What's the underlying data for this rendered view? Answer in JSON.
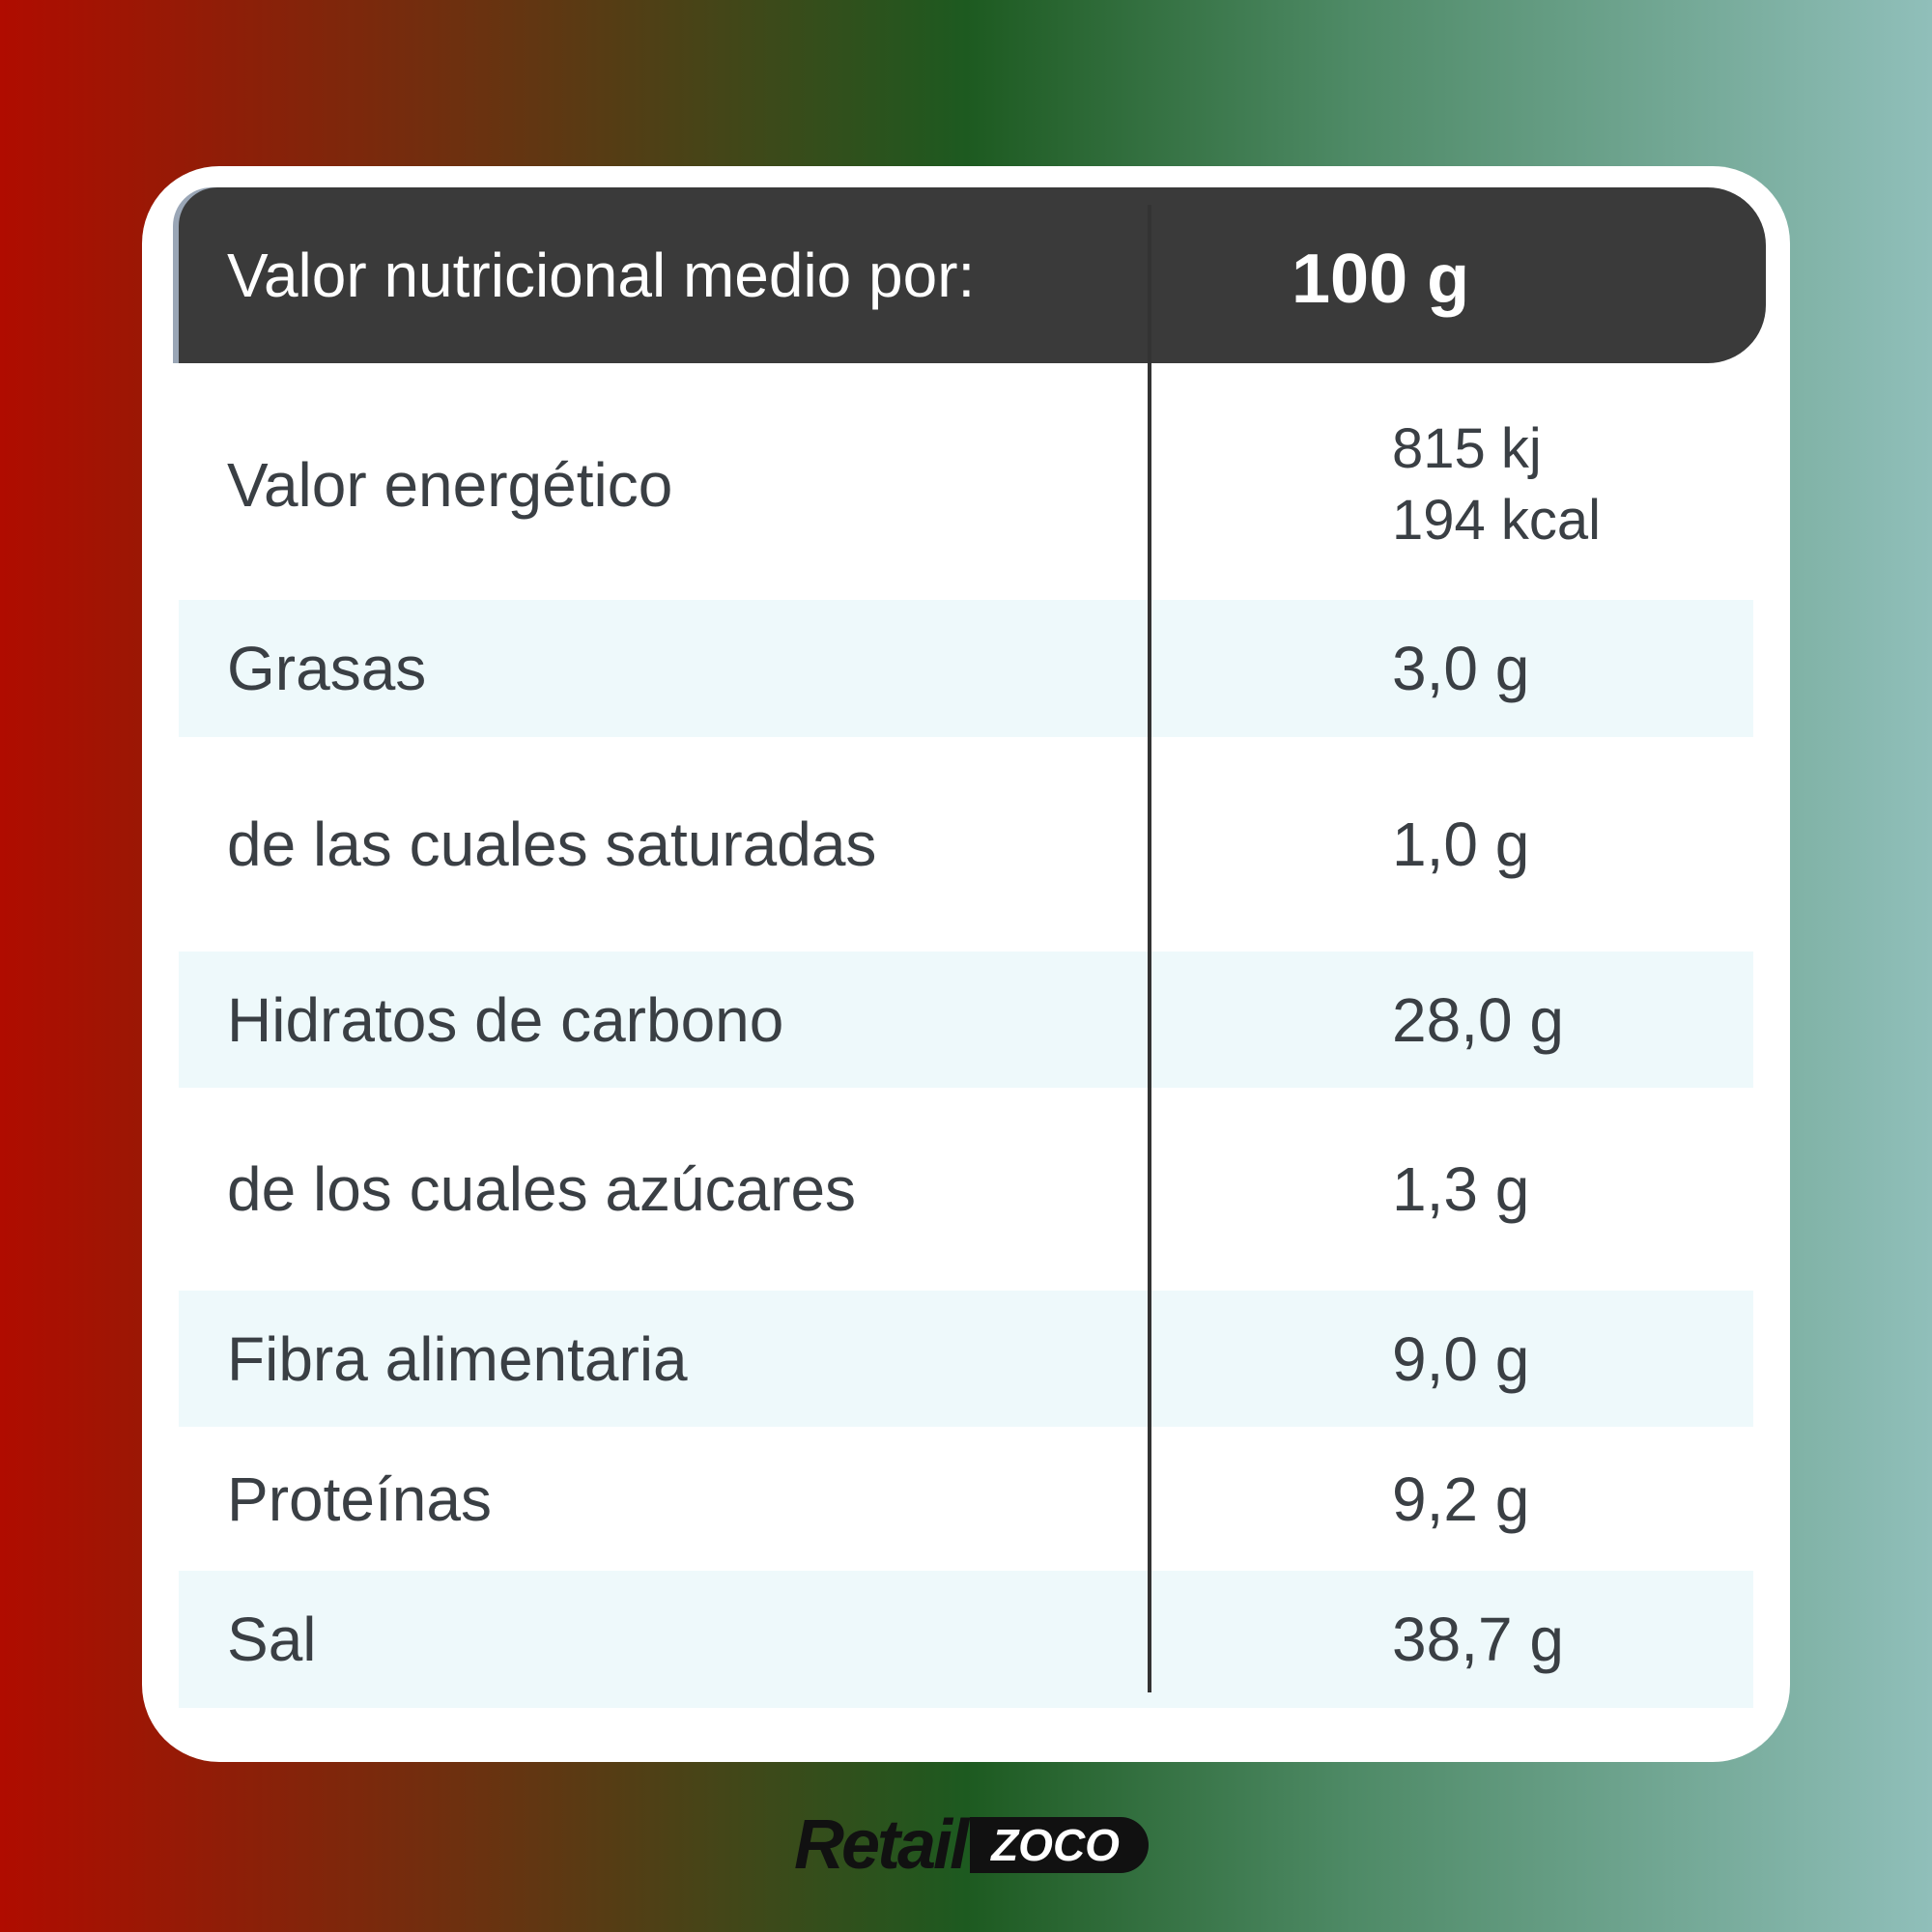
{
  "header": {
    "label": "Valor nutricional medio por:",
    "value": "100 g"
  },
  "table": {
    "rows": [
      {
        "label": "Valor energético",
        "values": [
          "815 kj",
          "194 kcal"
        ]
      },
      {
        "label": "Grasas",
        "values": [
          "3,0 g"
        ]
      },
      {
        "label": "de las cuales saturadas",
        "values": [
          "1,0 g"
        ]
      },
      {
        "label": "Hidratos de carbono",
        "values": [
          "28,0 g"
        ]
      },
      {
        "label": "de los cuales azúcares",
        "values": [
          "1,3 g"
        ]
      },
      {
        "label": "Fibra alimentaria",
        "values": [
          "9,0 g"
        ]
      },
      {
        "label": "Proteínas",
        "values": [
          "9,2 g"
        ]
      },
      {
        "label": "Sal",
        "values": [
          "38,7 g"
        ]
      }
    ]
  },
  "logo": {
    "brand": "Retail",
    "tag": "ZOCO"
  }
}
